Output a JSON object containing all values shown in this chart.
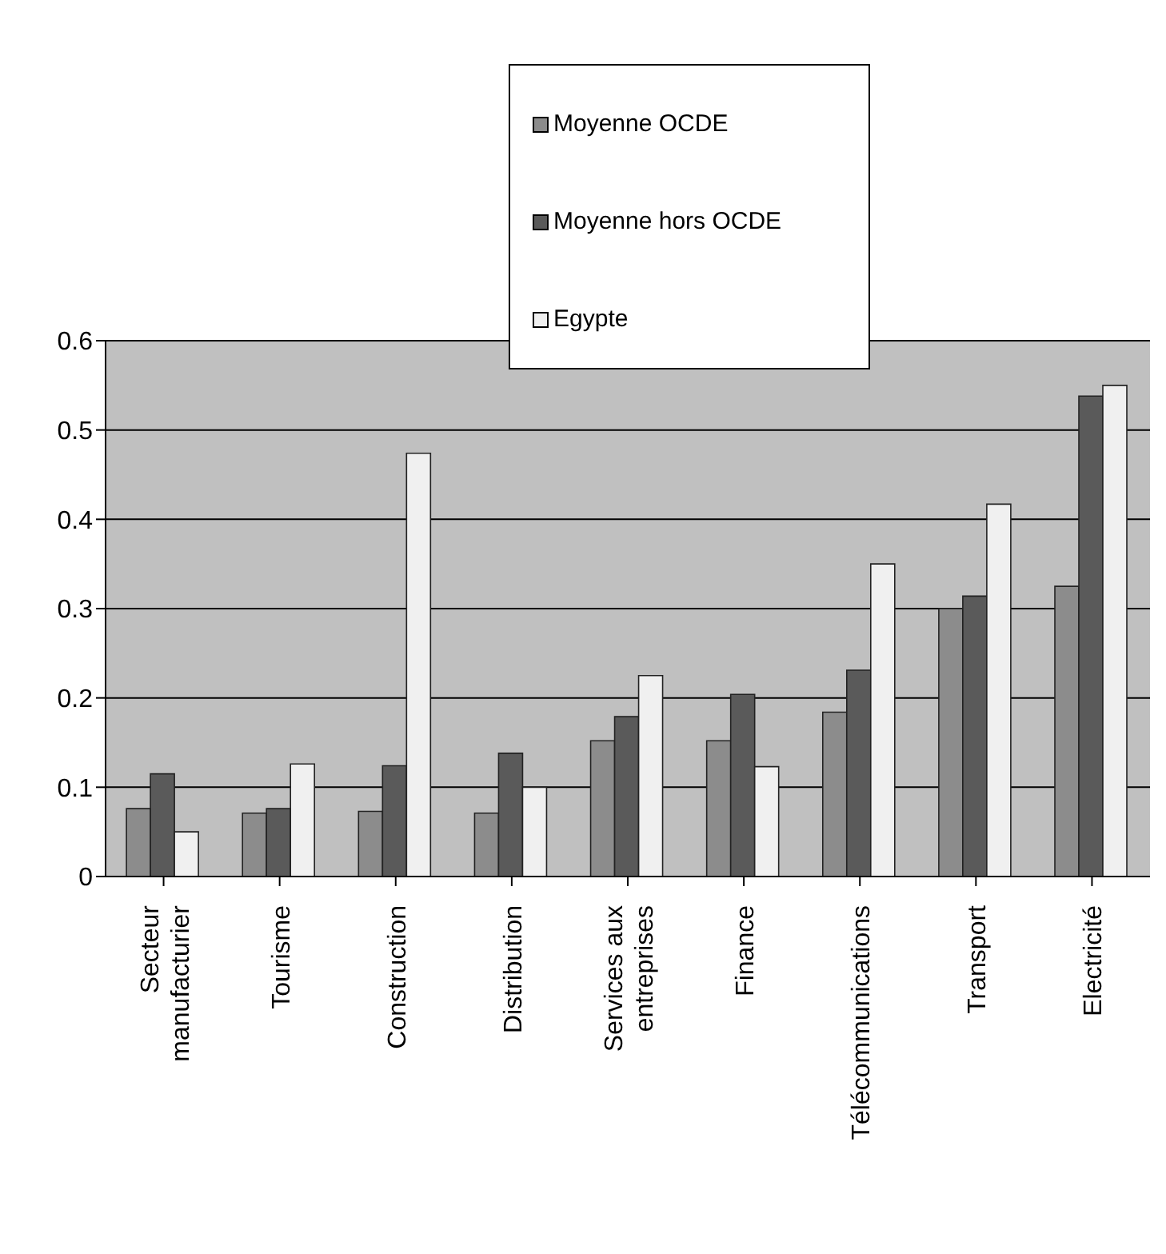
{
  "chart_data": {
    "type": "bar",
    "categories": [
      "Secteur manufacturier",
      "Tourisme",
      "Construction",
      "Distribution",
      "Services aux entreprises",
      "Finance",
      "Télécommunications",
      "Transport",
      "Electricité"
    ],
    "series": [
      {
        "name": "Moyenne OCDE",
        "color": "#8c8c8c",
        "values": [
          0.076,
          0.071,
          0.073,
          0.071,
          0.152,
          0.152,
          0.184,
          0.3,
          0.325
        ]
      },
      {
        "name": "Moyenne hors OCDE",
        "color": "#5a5a5a",
        "values": [
          0.115,
          0.076,
          0.124,
          0.138,
          0.179,
          0.204,
          0.231,
          0.314,
          0.538
        ]
      },
      {
        "name": "Egypte",
        "color": "#f0f0f0",
        "values": [
          0.05,
          0.126,
          0.474,
          0.1,
          0.225,
          0.123,
          0.35,
          0.417,
          0.55
        ]
      }
    ],
    "ylim": [
      0,
      0.6
    ],
    "yticks": [
      0,
      0.1,
      0.2,
      0.3,
      0.4,
      0.5,
      0.6
    ],
    "grid": "y",
    "legend": "top"
  }
}
